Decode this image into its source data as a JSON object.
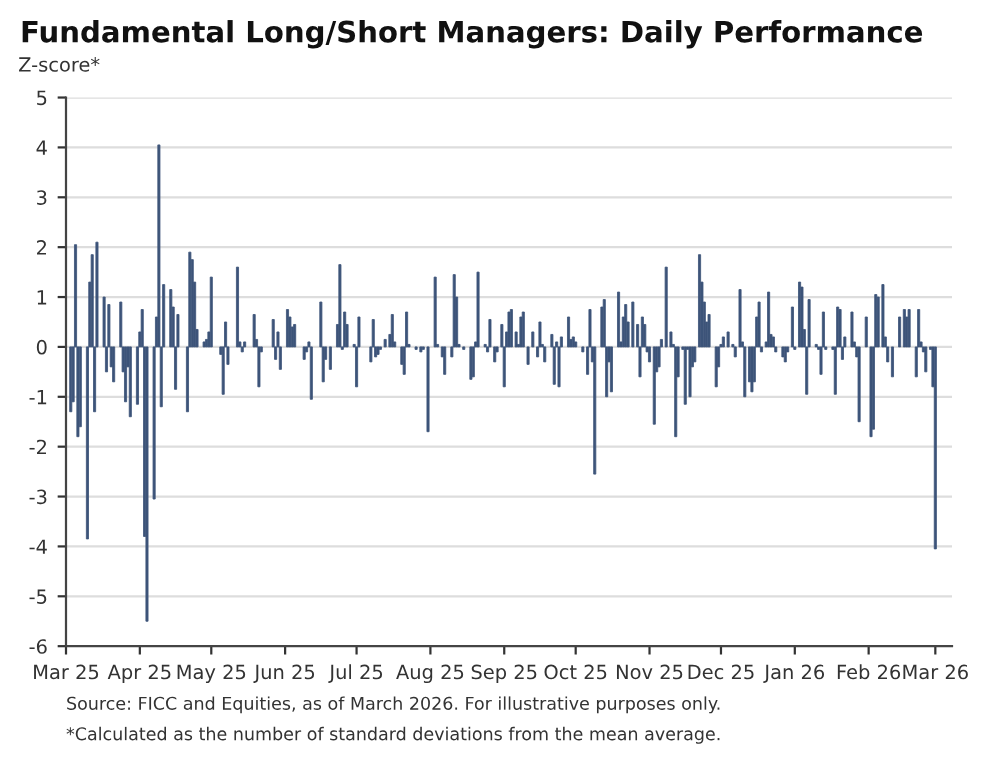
{
  "chart_data": {
    "type": "bar",
    "title": "Fundamental Long/Short Managers: Daily Performance",
    "ylabel": "Z-score*",
    "annotations": [
      "Source: FICC and Equities, as of March 2026. For illustrative purposes only.",
      "*Calculated as the number of standard deviations from the mean average."
    ],
    "x": [
      "2025-03-03",
      "2025-03-04",
      "2025-03-05",
      "2025-03-06",
      "2025-03-07",
      "2025-03-10",
      "2025-03-11",
      "2025-03-12",
      "2025-03-13",
      "2025-03-14",
      "2025-03-17",
      "2025-03-18",
      "2025-03-19",
      "2025-03-20",
      "2025-03-21",
      "2025-03-24",
      "2025-03-25",
      "2025-03-26",
      "2025-03-27",
      "2025-03-28",
      "2025-03-31",
      "2025-04-01",
      "2025-04-02",
      "2025-04-03",
      "2025-04-04",
      "2025-04-07",
      "2025-04-08",
      "2025-04-09",
      "2025-04-10",
      "2025-04-11",
      "2025-04-14",
      "2025-04-15",
      "2025-04-16",
      "2025-04-17",
      "2025-04-21",
      "2025-04-22",
      "2025-04-23",
      "2025-04-24",
      "2025-04-25",
      "2025-04-28",
      "2025-04-29",
      "2025-04-30",
      "2025-05-01",
      "2025-05-05",
      "2025-05-06",
      "2025-05-07",
      "2025-05-08",
      "2025-05-12",
      "2025-05-13",
      "2025-05-14",
      "2025-05-15",
      "2025-05-19",
      "2025-05-20",
      "2025-05-21",
      "2025-05-22",
      "2025-05-27",
      "2025-05-28",
      "2025-05-29",
      "2025-05-30",
      "2025-06-02",
      "2025-06-03",
      "2025-06-04",
      "2025-06-05",
      "2025-06-09",
      "2025-06-10",
      "2025-06-11",
      "2025-06-12",
      "2025-06-16",
      "2025-06-17",
      "2025-06-18",
      "2025-06-20",
      "2025-06-23",
      "2025-06-24",
      "2025-06-25",
      "2025-06-26",
      "2025-06-27",
      "2025-06-30",
      "2025-07-01",
      "2025-07-02",
      "2025-07-07",
      "2025-07-08",
      "2025-07-09",
      "2025-07-10",
      "2025-07-11",
      "2025-07-13",
      "2025-07-15",
      "2025-07-16",
      "2025-07-17",
      "2025-07-20",
      "2025-07-21",
      "2025-07-22",
      "2025-07-23",
      "2025-07-26",
      "2025-07-28",
      "2025-07-29",
      "2025-07-31",
      "2025-08-03",
      "2025-08-04",
      "2025-08-06",
      "2025-08-07",
      "2025-08-10",
      "2025-08-11",
      "2025-08-12",
      "2025-08-13",
      "2025-08-15",
      "2025-08-18",
      "2025-08-19",
      "2025-08-20",
      "2025-08-21",
      "2025-08-24",
      "2025-08-25",
      "2025-08-26",
      "2025-08-28",
      "2025-08-29",
      "2025-08-31",
      "2025-09-01",
      "2025-09-02",
      "2025-09-03",
      "2025-09-04",
      "2025-09-06",
      "2025-09-07",
      "2025-09-08",
      "2025-09-09",
      "2025-09-11",
      "2025-09-13",
      "2025-09-15",
      "2025-09-16",
      "2025-09-17",
      "2025-09-18",
      "2025-09-21",
      "2025-09-22",
      "2025-09-23",
      "2025-09-24",
      "2025-09-25",
      "2025-09-28",
      "2025-09-29",
      "2025-09-30",
      "2025-10-01",
      "2025-10-04",
      "2025-10-06",
      "2025-10-07",
      "2025-10-08",
      "2025-10-09",
      "2025-10-12",
      "2025-10-13",
      "2025-10-14",
      "2025-10-15",
      "2025-10-16",
      "2025-10-19",
      "2025-10-20",
      "2025-10-21",
      "2025-10-22",
      "2025-10-23",
      "2025-10-25",
      "2025-10-27",
      "2025-10-28",
      "2025-10-29",
      "2025-10-30",
      "2025-10-31",
      "2025-11-01",
      "2025-11-03",
      "2025-11-04",
      "2025-11-05",
      "2025-11-06",
      "2025-11-08",
      "2025-11-10",
      "2025-11-11",
      "2025-11-12",
      "2025-11-13",
      "2025-11-15",
      "2025-11-16",
      "2025-11-17",
      "2025-11-18",
      "2025-11-19",
      "2025-11-20",
      "2025-11-22",
      "2025-11-23",
      "2025-11-24",
      "2025-11-25",
      "2025-11-26",
      "2025-11-29",
      "2025-11-30",
      "2025-12-01",
      "2025-12-02",
      "2025-12-04",
      "2025-12-06",
      "2025-12-07",
      "2025-12-09",
      "2025-12-10",
      "2025-12-11",
      "2025-12-13",
      "2025-12-14",
      "2025-12-15",
      "2025-12-16",
      "2025-12-17",
      "2025-12-18",
      "2025-12-20",
      "2025-12-21",
      "2025-12-22",
      "2025-12-23",
      "2025-12-24",
      "2025-12-27",
      "2025-12-28",
      "2025-12-29",
      "2025-12-31",
      "2026-01-01",
      "2026-01-03",
      "2026-01-04",
      "2026-01-05",
      "2026-01-06",
      "2026-01-07",
      "2026-01-10",
      "2026-01-11",
      "2026-01-12",
      "2026-01-13",
      "2026-01-14",
      "2026-01-17",
      "2026-01-18",
      "2026-01-19",
      "2026-01-20",
      "2026-01-21",
      "2026-01-22",
      "2026-01-25",
      "2026-01-26",
      "2026-01-27",
      "2026-01-28",
      "2026-01-31",
      "2026-02-02",
      "2026-02-03",
      "2026-02-04",
      "2026-02-05",
      "2026-02-07",
      "2026-02-08",
      "2026-02-09",
      "2026-02-11",
      "2026-02-14",
      "2026-02-16",
      "2026-02-17",
      "2026-02-18",
      "2026-02-21",
      "2026-02-22",
      "2026-02-23",
      "2026-02-24",
      "2026-02-25",
      "2026-02-27",
      "2026-02-28",
      "2026-03-01"
    ],
    "values": [
      -1.3,
      -1.1,
      2.05,
      -1.8,
      -1.6,
      -3.85,
      1.3,
      1.85,
      -1.3,
      2.1,
      1.0,
      -0.5,
      0.85,
      -0.4,
      -0.7,
      0.9,
      -0.5,
      -1.1,
      -0.4,
      -1.4,
      -1.15,
      0.3,
      0.75,
      -3.8,
      -5.5,
      -3.05,
      0.6,
      4.05,
      -1.2,
      1.25,
      1.15,
      0.8,
      -0.85,
      0.65,
      -1.3,
      1.9,
      1.75,
      1.3,
      0.35,
      0.1,
      0.15,
      0.3,
      1.4,
      -0.15,
      -0.95,
      0.5,
      -0.35,
      1.6,
      0.1,
      -0.1,
      0.1,
      0.65,
      0.15,
      -0.8,
      -0.1,
      0.55,
      -0.25,
      0.3,
      -0.45,
      0.75,
      0.6,
      0.4,
      0.45,
      -0.25,
      -0.1,
      0.1,
      -1.05,
      0.9,
      -0.7,
      -0.25,
      -0.45,
      0.45,
      1.65,
      -0.05,
      0.7,
      0.45,
      0.05,
      -0.8,
      0.6,
      -0.3,
      0.55,
      -0.2,
      -0.15,
      -0.05,
      0.15,
      0.25,
      0.65,
      0.1,
      -0.35,
      -0.55,
      0.7,
      0.05,
      -0.05,
      -0.1,
      -0.05,
      -1.7,
      1.4,
      0.05,
      -0.2,
      -0.55,
      -0.2,
      1.45,
      1.0,
      0.05,
      -0.05,
      -0.65,
      -0.6,
      0.1,
      1.5,
      0.05,
      -0.1,
      0.55,
      -0.3,
      -0.1,
      0.45,
      -0.8,
      0.3,
      0.7,
      0.75,
      0.3,
      0.05,
      0.6,
      0.7,
      -0.35,
      0.3,
      -0.2,
      0.5,
      0.05,
      -0.3,
      0.25,
      -0.75,
      0.1,
      -0.8,
      0.2,
      0.6,
      0.15,
      0.2,
      0.1,
      -0.1,
      -0.55,
      0.75,
      -0.3,
      -2.55,
      0.8,
      0.95,
      -1.0,
      -0.3,
      -0.9,
      1.1,
      0.1,
      0.6,
      0.85,
      0.5,
      0.9,
      0.45,
      -0.6,
      0.6,
      0.45,
      -0.1,
      -0.3,
      -1.55,
      -0.5,
      -0.4,
      0.15,
      1.6,
      0.3,
      0.05,
      -1.8,
      -0.6,
      -0.05,
      -1.15,
      -0.05,
      -1.0,
      -0.4,
      -0.3,
      1.85,
      1.3,
      0.9,
      0.5,
      0.65,
      -0.8,
      -0.4,
      0.05,
      0.2,
      0.3,
      0.05,
      -0.2,
      1.15,
      0.1,
      -1.0,
      -0.7,
      -0.9,
      -0.7,
      0.6,
      0.9,
      -0.1,
      0.1,
      1.1,
      0.25,
      0.2,
      -0.1,
      -0.2,
      -0.3,
      -0.1,
      0.8,
      -0.05,
      1.3,
      1.2,
      0.35,
      -0.95,
      0.95,
      0.05,
      -0.05,
      -0.55,
      0.7,
      -0.05,
      -0.05,
      -0.95,
      0.8,
      0.75,
      -0.25,
      0.2,
      0.7,
      0.1,
      -0.2,
      -1.5,
      0.6,
      -1.8,
      -1.65,
      1.05,
      1.0,
      1.25,
      0.2,
      -0.3,
      -0.6,
      0.6,
      0.75,
      0.6,
      0.75,
      -0.6,
      0.75,
      0.1,
      -0.1,
      -0.5,
      -0.05,
      -0.8,
      -4.05
    ],
    "color": "#3d5479",
    "xlim": [
      "2025-03-01",
      "2026-03-08"
    ],
    "xticks": [
      {
        "value": "2025-03-01",
        "label": "Mar 25"
      },
      {
        "value": "2025-04-01",
        "label": "Apr 25"
      },
      {
        "value": "2025-05-01",
        "label": "May 25"
      },
      {
        "value": "2025-06-01",
        "label": "Jun 25"
      },
      {
        "value": "2025-07-01",
        "label": "Jul 25"
      },
      {
        "value": "2025-08-01",
        "label": "Aug 25"
      },
      {
        "value": "2025-09-01",
        "label": "Sep 25"
      },
      {
        "value": "2025-10-01",
        "label": "Oct 25"
      },
      {
        "value": "2025-11-01",
        "label": "Nov 25"
      },
      {
        "value": "2025-12-01",
        "label": "Dec 25"
      },
      {
        "value": "2026-01-01",
        "label": "Jan 26"
      },
      {
        "value": "2026-02-01",
        "label": "Feb 26"
      },
      {
        "value": "2026-03-01",
        "label": "Mar 26"
      }
    ],
    "ylim": [
      -6,
      5
    ],
    "yticks": [
      -6,
      -5,
      -4,
      -3,
      -2,
      -1,
      0,
      1,
      2,
      3,
      4,
      5
    ],
    "grid": "y",
    "legend": false
  }
}
